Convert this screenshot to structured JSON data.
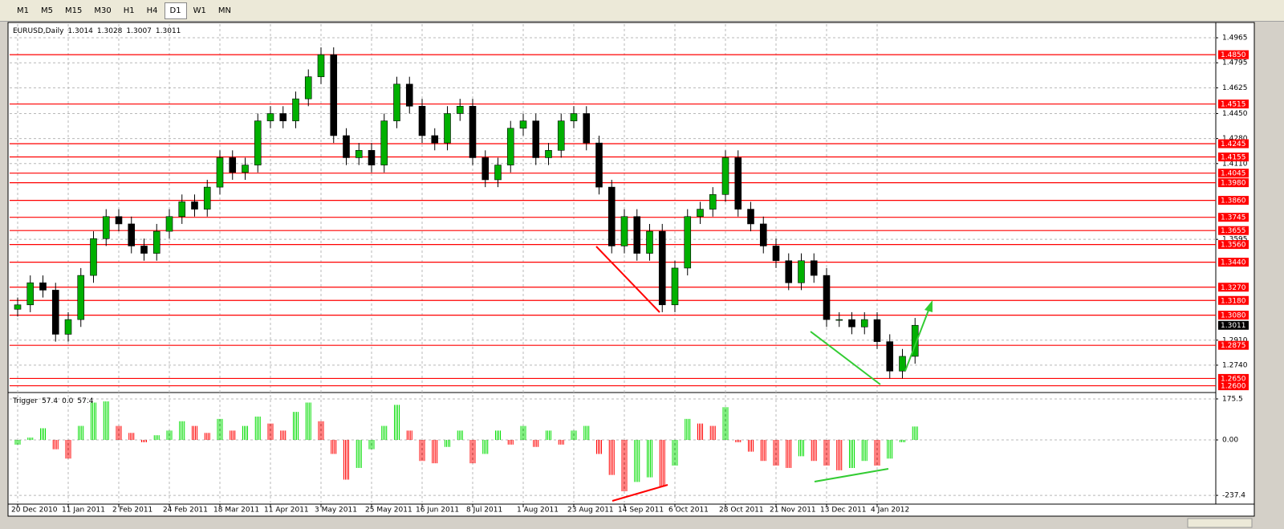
{
  "toolbar": {
    "timeframes": [
      "M1",
      "M5",
      "M15",
      "M30",
      "H1",
      "H4",
      "D1",
      "W1",
      "MN"
    ],
    "selected_index": 6
  },
  "chart_data": [
    {
      "type": "candlestick",
      "title": "EURUSD,Daily",
      "quote": [
        1.3014,
        1.3028,
        1.3007,
        1.3011
      ],
      "categories": [
        "20 Dec 2010",
        null,
        null,
        null,
        "11 Jan 2011",
        null,
        null,
        null,
        "2 Feb 2011",
        null,
        null,
        null,
        "24 Feb 2011",
        null,
        null,
        null,
        "18 Mar 2011",
        null,
        null,
        null,
        "11 Apr 2011",
        null,
        null,
        null,
        "3 May 2011",
        null,
        null,
        null,
        "25 May 2011",
        null,
        null,
        null,
        "16 Jun 2011",
        null,
        null,
        null,
        "8 Jul 2011",
        null,
        null,
        null,
        "1 Aug 2011",
        null,
        null,
        null,
        "23 Aug 2011",
        null,
        null,
        null,
        "14 Sep 2011",
        null,
        null,
        null,
        "6 Oct 2011",
        null,
        null,
        null,
        "28 Oct 2011",
        null,
        null,
        null,
        "21 Nov 2011",
        null,
        null,
        null,
        "13 Dec 2011",
        null,
        null,
        null,
        "4 Jan 2012",
        null,
        null,
        null
      ],
      "open": [
        1.312,
        1.315,
        1.33,
        1.325,
        1.295,
        1.305,
        1.335,
        1.36,
        1.375,
        1.37,
        1.355,
        1.35,
        1.365,
        1.375,
        1.385,
        1.38,
        1.395,
        1.415,
        1.405,
        1.41,
        1.44,
        1.445,
        1.44,
        1.455,
        1.47,
        1.485,
        1.43,
        1.415,
        1.42,
        1.41,
        1.44,
        1.465,
        1.45,
        1.43,
        1.425,
        1.445,
        1.45,
        1.415,
        1.4,
        1.41,
        1.435,
        1.44,
        1.415,
        1.42,
        1.44,
        1.445,
        1.425,
        1.395,
        1.355,
        1.375,
        1.35,
        1.365,
        1.315,
        1.34,
        1.375,
        1.38,
        1.39,
        1.415,
        1.38,
        1.37,
        1.355,
        1.345,
        1.33,
        1.345,
        1.335,
        1.305,
        1.305,
        1.3,
        1.305,
        1.29,
        1.27,
        1.28
      ],
      "high": [
        1.32,
        1.335,
        1.335,
        1.33,
        1.31,
        1.34,
        1.365,
        1.38,
        1.38,
        1.375,
        1.36,
        1.37,
        1.38,
        1.39,
        1.39,
        1.4,
        1.42,
        1.42,
        1.415,
        1.445,
        1.45,
        1.45,
        1.46,
        1.475,
        1.49,
        1.49,
        1.435,
        1.425,
        1.425,
        1.445,
        1.47,
        1.47,
        1.455,
        1.435,
        1.45,
        1.455,
        1.455,
        1.42,
        1.415,
        1.44,
        1.445,
        1.445,
        1.425,
        1.445,
        1.45,
        1.45,
        1.43,
        1.4,
        1.38,
        1.38,
        1.37,
        1.37,
        1.345,
        1.38,
        1.385,
        1.395,
        1.42,
        1.42,
        1.385,
        1.375,
        1.36,
        1.35,
        1.35,
        1.35,
        1.34,
        1.31,
        1.31,
        1.31,
        1.31,
        1.295,
        1.285,
        1.3061
      ],
      "low": [
        1.307,
        1.31,
        1.32,
        1.29,
        1.29,
        1.3,
        1.33,
        1.355,
        1.365,
        1.35,
        1.345,
        1.345,
        1.36,
        1.37,
        1.375,
        1.375,
        1.39,
        1.4,
        1.4,
        1.405,
        1.435,
        1.435,
        1.435,
        1.45,
        1.465,
        1.425,
        1.41,
        1.41,
        1.405,
        1.405,
        1.435,
        1.445,
        1.425,
        1.42,
        1.42,
        1.44,
        1.41,
        1.395,
        1.395,
        1.405,
        1.43,
        1.41,
        1.41,
        1.415,
        1.435,
        1.42,
        1.39,
        1.35,
        1.35,
        1.345,
        1.345,
        1.31,
        1.31,
        1.335,
        1.37,
        1.375,
        1.385,
        1.375,
        1.365,
        1.35,
        1.34,
        1.325,
        1.325,
        1.33,
        1.3,
        1.3,
        1.295,
        1.295,
        1.285,
        1.265,
        1.265,
        1.275
      ],
      "close": [
        1.315,
        1.33,
        1.325,
        1.295,
        1.305,
        1.335,
        1.36,
        1.375,
        1.37,
        1.355,
        1.35,
        1.365,
        1.375,
        1.385,
        1.38,
        1.395,
        1.415,
        1.405,
        1.41,
        1.44,
        1.445,
        1.44,
        1.455,
        1.47,
        1.485,
        1.43,
        1.415,
        1.42,
        1.41,
        1.44,
        1.465,
        1.45,
        1.43,
        1.425,
        1.445,
        1.45,
        1.415,
        1.4,
        1.41,
        1.435,
        1.44,
        1.415,
        1.42,
        1.44,
        1.445,
        1.425,
        1.395,
        1.355,
        1.375,
        1.35,
        1.365,
        1.315,
        1.34,
        1.375,
        1.38,
        1.39,
        1.415,
        1.38,
        1.37,
        1.355,
        1.345,
        1.33,
        1.345,
        1.335,
        1.305,
        1.305,
        1.3,
        1.305,
        1.29,
        1.27,
        1.28,
        1.3011
      ],
      "up_color": "#00b000",
      "down_color": "#000000",
      "ylim": [
        1.2565,
        1.5058
      ],
      "yticks": [
        1.4965,
        1.4795,
        1.4625,
        {
          "value": 1.445,
          "label": "1.4450"
        },
        {
          "value": 1.428,
          "label": "1.4280"
        },
        {
          "value": 1.411,
          "label": "1.4110"
        },
        1.3595,
        {
          "value": 1.291,
          "label": "1.2910"
        },
        {
          "value": 1.274,
          "label": "1.2740"
        }
      ],
      "grid": true,
      "levels": [
        {
          "value": 1.485,
          "label": "1.4850"
        },
        1.4515,
        1.4245,
        1.4155,
        1.4045,
        {
          "value": 1.398,
          "label": "1.3980"
        },
        {
          "value": 1.386,
          "label": "1.3860"
        },
        1.3745,
        1.3655,
        {
          "value": 1.356,
          "label": "1.3560"
        },
        {
          "value": 1.344,
          "label": "1.3440"
        },
        {
          "value": 1.327,
          "label": "1.3270"
        },
        {
          "value": 1.318,
          "label": "1.3180"
        },
        {
          "value": 1.308,
          "label": "1.3080"
        },
        1.2875,
        {
          "value": 1.265,
          "label": "1.2650"
        },
        {
          "value": 1.26,
          "label": "1.2600"
        }
      ],
      "level_color": "#ff0000",
      "last": 1.3011
    },
    {
      "type": "histogram",
      "title": "Trigger",
      "quote": [
        57.4,
        {
          "value": 0,
          "label": "0.0"
        },
        57.4
      ],
      "values": [
        -20,
        10,
        50,
        -40,
        -80,
        60,
        160,
        165,
        60,
        30,
        -10,
        20,
        40,
        80,
        60,
        30,
        90,
        40,
        60,
        100,
        70,
        40,
        120,
        160,
        80,
        -60,
        -170,
        -120,
        -40,
        60,
        150,
        40,
        -90,
        -100,
        -30,
        40,
        -100,
        -60,
        40,
        -20,
        60,
        -30,
        40,
        -20,
        40,
        60,
        -60,
        -150,
        -220,
        -180,
        -160,
        -200,
        -110,
        90,
        70,
        60,
        140,
        -10,
        -50,
        -90,
        -110,
        -120,
        -70,
        -90,
        -110,
        -130,
        -120,
        -90,
        -110,
        -80,
        -10,
        57.4
      ],
      "up_color": "#00dd00",
      "down_color": "#ff0000",
      "ylim": [
        -268,
        196
      ],
      "yticks": [
        175.5,
        {
          "value": 0,
          "label": "0.00"
        },
        -237.4
      ]
    }
  ]
}
